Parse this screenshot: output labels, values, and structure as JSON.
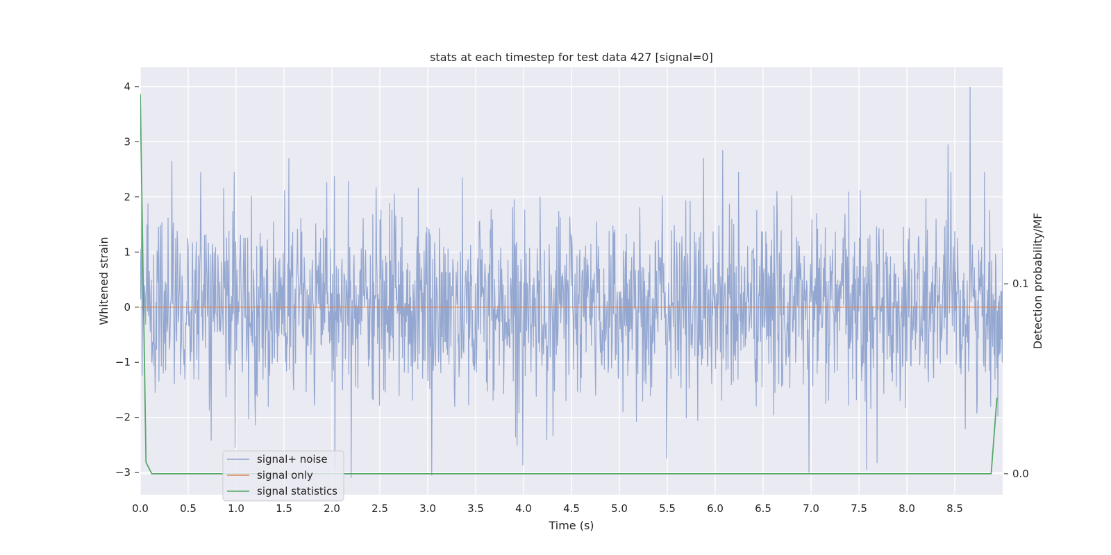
{
  "chart_data": {
    "type": "line",
    "title": "stats at each timestep for test data 427 [signal=0]",
    "xlabel": "Time (s)",
    "ylabel": "Whitened strain",
    "ylabel_right": "Detection probability/MF",
    "xlim": [
      0,
      9.0
    ],
    "ylim": [
      -3.4,
      4.35
    ],
    "ylim_right": [
      -0.011,
      0.214
    ],
    "grid": true,
    "x_ticks": [
      "0.0",
      "0.5",
      "1.0",
      "1.5",
      "2.0",
      "2.5",
      "3.0",
      "3.5",
      "4.0",
      "4.5",
      "5.0",
      "5.5",
      "6.0",
      "6.5",
      "7.0",
      "7.5",
      "8.0",
      "8.5"
    ],
    "x_tick_values": [
      0,
      0.5,
      1,
      1.5,
      2,
      2.5,
      3,
      3.5,
      4,
      4.5,
      5,
      5.5,
      6,
      6.5,
      7,
      7.5,
      8,
      8.5
    ],
    "y_ticks": [
      "−3",
      "−2",
      "−1",
      "0",
      "1",
      "2",
      "3",
      "4"
    ],
    "y_tick_values": [
      -3,
      -2,
      -1,
      0,
      1,
      2,
      3,
      4
    ],
    "y_ticks_right": [
      "0.0",
      "0.1"
    ],
    "y_tick_values_right": [
      0.0,
      0.1
    ],
    "legend_position": "lower-left",
    "series": [
      {
        "name": "signal+ noise",
        "color": "#8fa3cd",
        "axis": "left",
        "x_range": [
          0,
          9.0
        ],
        "n_points": 1800,
        "amplitude_range": [
          -3.1,
          4.0
        ],
        "notable_peaks": [
          {
            "x": 8.66,
            "y": 4.0
          },
          {
            "x": 8.43,
            "y": 2.95
          },
          {
            "x": 6.08,
            "y": 2.85
          },
          {
            "x": 5.88,
            "y": 2.7
          },
          {
            "x": 1.55,
            "y": 2.7
          },
          {
            "x": 0.33,
            "y": 2.65
          },
          {
            "x": 2.2,
            "y": -3.1
          },
          {
            "x": 3.04,
            "y": -3.05
          },
          {
            "x": 6.98,
            "y": -3.0
          },
          {
            "x": 2.03,
            "y": -2.95
          },
          {
            "x": 7.58,
            "y": -2.95
          }
        ]
      },
      {
        "name": "signal only",
        "color": "#dd8452",
        "axis": "left",
        "x": [
          0,
          9.0
        ],
        "y": [
          0,
          0
        ]
      },
      {
        "name": "signal statistics",
        "color": "#55a868",
        "axis": "right",
        "x": [
          0.0,
          0.06,
          0.12,
          8.88,
          8.94
        ],
        "y": [
          0.2,
          0.006,
          0.0,
          0.0,
          0.04
        ]
      }
    ]
  }
}
